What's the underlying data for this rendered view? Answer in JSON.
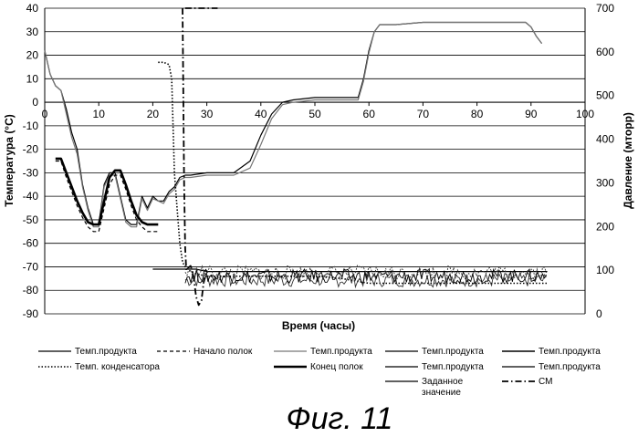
{
  "chart_data": {
    "type": "line",
    "title": "",
    "caption": "Фиг. 11",
    "xlabel": "Время (часы)",
    "ylabel_left": "Температура (°C)",
    "ylabel_right": "Давление (мторр)",
    "xlim": [
      0,
      100
    ],
    "ylim_left": [
      -90,
      40
    ],
    "ylim_right": [
      0,
      700
    ],
    "x_ticks": [
      0,
      10,
      20,
      30,
      40,
      50,
      60,
      70,
      80,
      90,
      100
    ],
    "y_ticks_left": [
      40,
      30,
      20,
      10,
      0,
      -10,
      -20,
      -30,
      -40,
      -50,
      -60,
      -70,
      -80,
      -90
    ],
    "y_ticks_right": [
      700,
      600,
      500,
      400,
      300,
      200,
      100,
      0
    ],
    "grid": "horizontal",
    "legend_position": "bottom",
    "legend": [
      {
        "label": "Темп.продукта",
        "style": "thin"
      },
      {
        "label": "Начало полок",
        "style": "dashed"
      },
      {
        "label": "Темп.продукта",
        "style": "gray"
      },
      {
        "label": "Темп.продукта",
        "style": "thin"
      },
      {
        "label": "Темп.продукта",
        "style": "medium"
      },
      {
        "label": "Темп. конденсатора",
        "style": "dotted"
      },
      {
        "label": "Конец полок",
        "style": "thick"
      },
      {
        "label": "Темп.продукта",
        "style": "thin"
      },
      {
        "label": "Темп.продукта",
        "style": "thin"
      },
      {
        "label": "Заданное значение",
        "label_lines": [
          "Заданное",
          "значение"
        ],
        "style": "thin"
      },
      {
        "label": "СМ",
        "style": "dashdot"
      }
    ],
    "series": [
      {
        "name": "Темп.продукта",
        "axis": "left",
        "style": "thin",
        "x": [
          0,
          1,
          2,
          3,
          4,
          5,
          6,
          7,
          8,
          9,
          10,
          11,
          12,
          13,
          14,
          15,
          16,
          17,
          18,
          19,
          20,
          21,
          22,
          23,
          24,
          25,
          26,
          27,
          30,
          35,
          38,
          40,
          42,
          44,
          46,
          50,
          55,
          58,
          59,
          60,
          61,
          62,
          65,
          70,
          75,
          80,
          85,
          89,
          90,
          91,
          92
        ],
        "y": [
          22,
          12,
          7,
          5,
          -3,
          -13,
          -20,
          -35,
          -45,
          -52,
          -52,
          -35,
          -30,
          -30,
          -40,
          -50,
          -52,
          -52,
          -40,
          -45,
          -40,
          -42,
          -42,
          -38,
          -36,
          -32,
          -31,
          -31,
          -30,
          -30,
          -25,
          -14,
          -5,
          0,
          1,
          2,
          2,
          2,
          10,
          22,
          30,
          33,
          33,
          34,
          34,
          34,
          34,
          34,
          32,
          28,
          25
        ]
      },
      {
        "name": "Темп.продукта",
        "axis": "left",
        "style": "gray",
        "x": [
          0,
          1,
          2,
          3,
          4,
          5,
          6,
          7,
          8,
          9,
          10,
          11,
          12,
          13,
          14,
          15,
          16,
          17,
          18,
          19,
          20,
          21,
          22,
          23,
          24,
          25,
          26,
          27,
          30,
          35,
          38,
          40,
          42,
          44,
          46,
          50,
          55,
          58,
          59,
          60,
          61,
          62,
          65,
          70,
          75,
          80,
          85,
          89,
          90,
          91,
          92
        ],
        "y": [
          22,
          12,
          7,
          5,
          -5,
          -15,
          -22,
          -36,
          -46,
          -53,
          -53,
          -36,
          -31,
          -31,
          -41,
          -51,
          -53,
          -53,
          -41,
          -46,
          -41,
          -42,
          -43,
          -39,
          -37,
          -33,
          -32,
          -32,
          -31,
          -31,
          -28,
          -18,
          -7,
          -1,
          0,
          1,
          1,
          1,
          9,
          21,
          30,
          33,
          33,
          34,
          34,
          34,
          34,
          34,
          32,
          28,
          25
        ]
      },
      {
        "name": "Начало полок",
        "axis": "left",
        "style": "dashed",
        "x": [
          2,
          3,
          4,
          5,
          6,
          7,
          8,
          9,
          10,
          11,
          12,
          13,
          14,
          15,
          16,
          17,
          18,
          19,
          20,
          21
        ],
        "y": [
          -25,
          -25,
          -32,
          -38,
          -44,
          -49,
          -53,
          -55,
          -55,
          -45,
          -35,
          -31,
          -31,
          -37,
          -44,
          -50,
          -53,
          -55,
          -55,
          -55
        ]
      },
      {
        "name": "Конец полок",
        "axis": "left",
        "style": "thick",
        "x": [
          2,
          3,
          4,
          5,
          6,
          7,
          8,
          9,
          10,
          11,
          12,
          13,
          14,
          15,
          16,
          17,
          18,
          19,
          20,
          21
        ],
        "y": [
          -24,
          -24,
          -30,
          -36,
          -42,
          -47,
          -51,
          -52,
          -52,
          -42,
          -32,
          -29,
          -29,
          -35,
          -42,
          -48,
          -51,
          -52,
          -52,
          -52
        ]
      },
      {
        "name": "Темп. конденсатора",
        "axis": "left",
        "style": "dotted",
        "x": [
          21,
          22,
          23,
          23.5,
          24,
          24.5,
          25,
          25.5,
          26,
          27,
          28,
          30,
          35,
          40,
          45,
          50,
          55,
          60,
          65,
          70,
          75,
          80,
          85,
          90,
          93
        ],
        "y": [
          17,
          17,
          16,
          10,
          -30,
          -45,
          -60,
          -68,
          -70,
          -72,
          -73,
          -74,
          -74,
          -74,
          -74,
          -74,
          -75,
          -77,
          -77,
          -77,
          -77,
          -77,
          -77,
          -77,
          -77
        ]
      },
      {
        "name": "Заданное значение",
        "axis": "left",
        "style": "thin",
        "x": [
          20,
          28,
          30,
          35,
          40,
          50,
          60,
          70,
          80,
          90,
          93
        ],
        "y": [
          -71,
          -71,
          -72,
          -72,
          -72,
          -72,
          -72,
          -72,
          -72,
          -72,
          -72
        ]
      },
      {
        "name": "СМ",
        "axis": "right",
        "style": "dashdot",
        "x": [
          25.5,
          25.8,
          26,
          26.2,
          26.5,
          27,
          27.5,
          28,
          28.5,
          29,
          29.5,
          30
        ],
        "y": [
          700,
          300,
          150,
          100,
          105,
          110,
          90,
          40,
          20,
          30,
          80,
          100
        ]
      },
      {
        "name": "СМ",
        "axis": "left",
        "style": "dashdot",
        "x": [
          26,
          29.5,
          30,
          32
        ],
        "y": [
          40,
          40,
          40,
          40
        ]
      }
    ],
    "noise_band": {
      "series_name": "Темп.продукта",
      "axis": "left",
      "x_range": [
        26,
        93
      ],
      "y_center": -74,
      "amplitude": 3
    }
  }
}
